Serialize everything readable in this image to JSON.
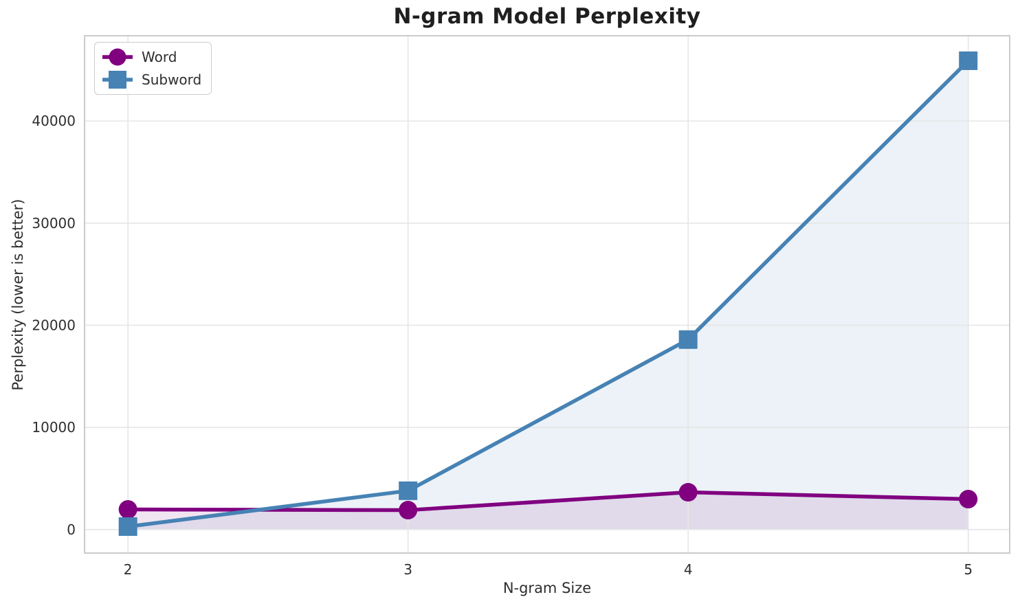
{
  "chart_data": {
    "type": "line",
    "title": "N-gram Model Perplexity",
    "xlabel": "N-gram Size",
    "ylabel": "Perplexity (lower is better)",
    "x": [
      2,
      3,
      4,
      5
    ],
    "series": [
      {
        "name": "Word",
        "marker": "circle",
        "color": "#800080",
        "values": [
          1970,
          1900,
          3650,
          2980
        ]
      },
      {
        "name": "Subword",
        "marker": "square",
        "color": "#4682b4",
        "values": [
          290,
          3800,
          18600,
          45900
        ]
      }
    ],
    "fill_to_zero": true,
    "fill_alpha": 0.1,
    "xticks": [
      2,
      3,
      4,
      5
    ],
    "xtick_labels": [
      "2",
      "3",
      "4",
      "5"
    ],
    "yticks": [
      0,
      10000,
      20000,
      30000,
      40000
    ],
    "ytick_labels": [
      "0",
      "10000",
      "20000",
      "30000",
      "40000"
    ],
    "xlim": [
      1.845,
      5.148
    ],
    "ylim": [
      -2300,
      48350
    ],
    "grid": true,
    "legend_position": "upper-left",
    "grid_color": "#e6e6e6",
    "spine_color": "#cbcbcb"
  }
}
